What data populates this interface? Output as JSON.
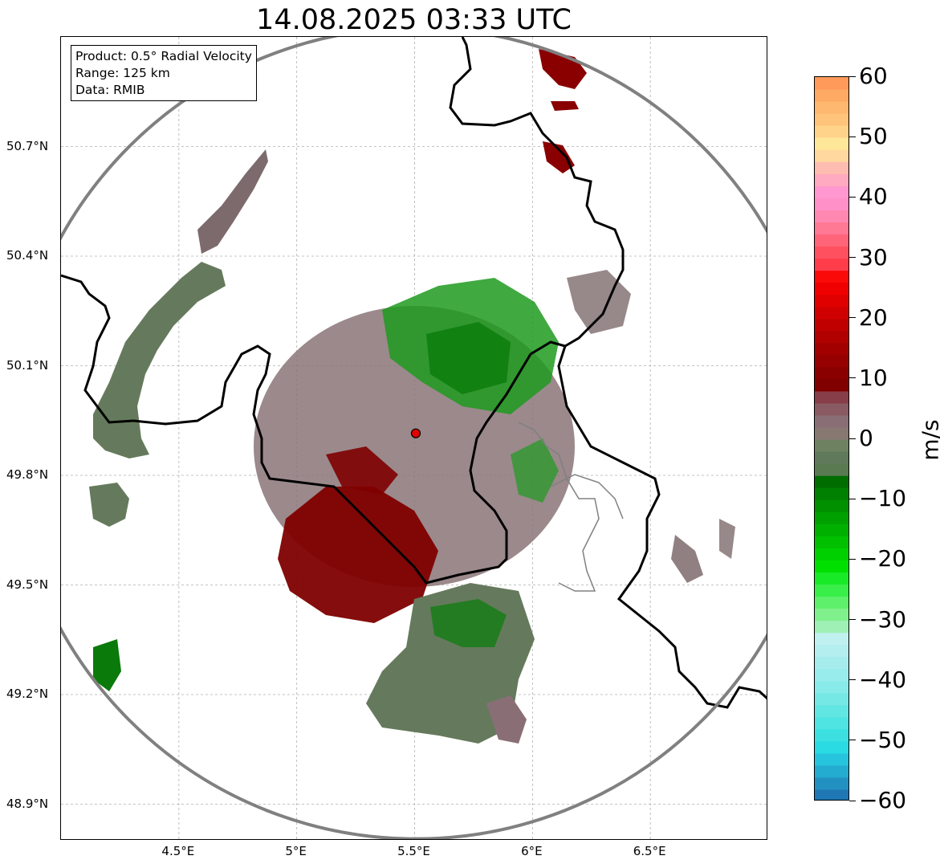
{
  "title": "14.08.2025 03:33 UTC",
  "info": {
    "product": "Product: 0.5° Radial Velocity",
    "range": "Range: 125 km",
    "data": "Data: RMIB"
  },
  "map": {
    "lon_range": [
      4.0,
      7.0
    ],
    "lat_range": [
      48.8,
      51.0
    ],
    "radar_site": {
      "lon": 5.505,
      "lat": 49.915
    },
    "range_ring_color": "#808080",
    "border_color": "#000000",
    "gridlines": true,
    "x_ticks": [
      {
        "value": 4.5,
        "label": "4.5°E"
      },
      {
        "value": 5.0,
        "label": "5°E"
      },
      {
        "value": 5.5,
        "label": "5.5°E"
      },
      {
        "value": 6.0,
        "label": "6°E"
      },
      {
        "value": 6.5,
        "label": "6.5°E"
      }
    ],
    "y_ticks": [
      {
        "value": 50.7,
        "label": "50.7°N"
      },
      {
        "value": 50.4,
        "label": "50.4°N"
      },
      {
        "value": 50.1,
        "label": "50.1°N"
      },
      {
        "value": 49.8,
        "label": "49.8°N"
      },
      {
        "value": 49.5,
        "label": "49.5°N"
      },
      {
        "value": 49.2,
        "label": "49.2°N"
      },
      {
        "value": 48.9,
        "label": "48.9°N"
      }
    ]
  },
  "colorbar": {
    "unit": "m/s",
    "min": -60,
    "max": 60,
    "ticks": [
      {
        "value": 60,
        "label": "60"
      },
      {
        "value": 50,
        "label": "50"
      },
      {
        "value": 40,
        "label": "40"
      },
      {
        "value": 30,
        "label": "30"
      },
      {
        "value": 20,
        "label": "20"
      },
      {
        "value": 10,
        "label": "10"
      },
      {
        "value": 0,
        "label": "0"
      },
      {
        "value": -10,
        "label": "−10"
      },
      {
        "value": -20,
        "label": "−20"
      },
      {
        "value": -30,
        "label": "−30"
      },
      {
        "value": -40,
        "label": "−40"
      },
      {
        "value": -50,
        "label": "−50"
      },
      {
        "value": -60,
        "label": "−60"
      }
    ],
    "bands": [
      {
        "from": -60,
        "to": -58,
        "color": "#1f77b4"
      },
      {
        "from": -58,
        "to": -56,
        "color": "#2291c2"
      },
      {
        "from": -56,
        "to": -54,
        "color": "#24abd0"
      },
      {
        "from": -54,
        "to": -52,
        "color": "#27c5dd"
      },
      {
        "from": -52,
        "to": -50,
        "color": "#2adbe3"
      },
      {
        "from": -50,
        "to": -48,
        "color": "#3ce0e0"
      },
      {
        "from": -48,
        "to": -46,
        "color": "#4fe3e1"
      },
      {
        "from": -46,
        "to": -44,
        "color": "#62e6e3"
      },
      {
        "from": -44,
        "to": -42,
        "color": "#75e8e6"
      },
      {
        "from": -42,
        "to": -40,
        "color": "#88ebe9"
      },
      {
        "from": -40,
        "to": -38,
        "color": "#98eceb"
      },
      {
        "from": -38,
        "to": -36,
        "color": "#a6ecec"
      },
      {
        "from": -36,
        "to": -34,
        "color": "#b4eeee"
      },
      {
        "from": -34,
        "to": -32,
        "color": "#c0f0f0"
      },
      {
        "from": -32,
        "to": -30,
        "color": "#9ef0b4"
      },
      {
        "from": -30,
        "to": -28,
        "color": "#80f08c"
      },
      {
        "from": -28,
        "to": -26,
        "color": "#5ef06a"
      },
      {
        "from": -26,
        "to": -24,
        "color": "#3aee4a"
      },
      {
        "from": -24,
        "to": -22,
        "color": "#18ea28"
      },
      {
        "from": -22,
        "to": -20,
        "color": "#00e000"
      },
      {
        "from": -20,
        "to": -18,
        "color": "#00d000"
      },
      {
        "from": -18,
        "to": -16,
        "color": "#00c000"
      },
      {
        "from": -16,
        "to": -14,
        "color": "#00b000"
      },
      {
        "from": -14,
        "to": -12,
        "color": "#00a000"
      },
      {
        "from": -12,
        "to": -10,
        "color": "#009000"
      },
      {
        "from": -10,
        "to": -8,
        "color": "#008000"
      },
      {
        "from": -8,
        "to": -6,
        "color": "#006d00"
      },
      {
        "from": -6,
        "to": -4,
        "color": "#5a7a52"
      },
      {
        "from": -4,
        "to": -2,
        "color": "#60795a"
      },
      {
        "from": -2,
        "to": 0,
        "color": "#6e8262"
      },
      {
        "from": 0,
        "to": 2,
        "color": "#887872"
      },
      {
        "from": 2,
        "to": 4,
        "color": "#8a6e76"
      },
      {
        "from": 4,
        "to": 6,
        "color": "#8a5a62"
      },
      {
        "from": 6,
        "to": 8,
        "color": "#883e48"
      },
      {
        "from": 8,
        "to": 10,
        "color": "#800000"
      },
      {
        "from": 10,
        "to": 12,
        "color": "#8a0000"
      },
      {
        "from": 12,
        "to": 14,
        "color": "#960000"
      },
      {
        "from": 14,
        "to": 16,
        "color": "#a20000"
      },
      {
        "from": 16,
        "to": 18,
        "color": "#b00000"
      },
      {
        "from": 18,
        "to": 20,
        "color": "#c00000"
      },
      {
        "from": 20,
        "to": 22,
        "color": "#d00000"
      },
      {
        "from": 22,
        "to": 24,
        "color": "#e00000"
      },
      {
        "from": 24,
        "to": 26,
        "color": "#f00000"
      },
      {
        "from": 26,
        "to": 28,
        "color": "#fb0a0a"
      },
      {
        "from": 28,
        "to": 30,
        "color": "#ff3d4a"
      },
      {
        "from": 30,
        "to": 32,
        "color": "#ff5060"
      },
      {
        "from": 32,
        "to": 34,
        "color": "#ff6478"
      },
      {
        "from": 34,
        "to": 36,
        "color": "#ff7894"
      },
      {
        "from": 36,
        "to": 38,
        "color": "#ff88b0"
      },
      {
        "from": 38,
        "to": 40,
        "color": "#ff90c8"
      },
      {
        "from": 40,
        "to": 42,
        "color": "#ff98d0"
      },
      {
        "from": 42,
        "to": 44,
        "color": "#ffaac0"
      },
      {
        "from": 44,
        "to": 46,
        "color": "#ffbcb0"
      },
      {
        "from": 46,
        "to": 48,
        "color": "#ffd8a0"
      },
      {
        "from": 48,
        "to": 50,
        "color": "#ffe79a"
      },
      {
        "from": 50,
        "to": 52,
        "color": "#ffd48a"
      },
      {
        "from": 52,
        "to": 54,
        "color": "#ffc47c"
      },
      {
        "from": 54,
        "to": 56,
        "color": "#ffb870"
      },
      {
        "from": 56,
        "to": 58,
        "color": "#ffaa64"
      },
      {
        "from": 58,
        "to": 60,
        "color": "#ff9a5a"
      }
    ]
  }
}
